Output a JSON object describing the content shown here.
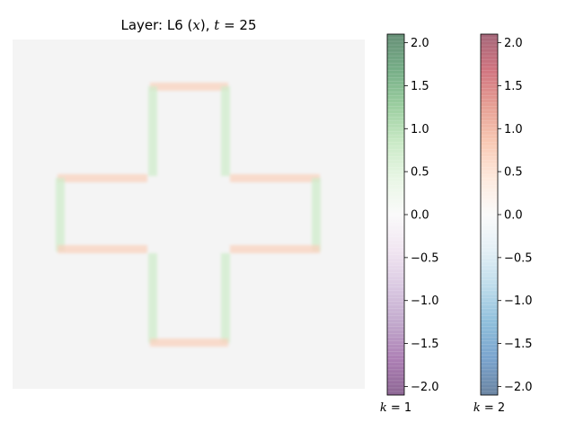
{
  "chart_data": {
    "type": "heatmap",
    "title": "Layer: L6 (x), t = 25",
    "title_parts": {
      "prefix": "Layer: L6 (",
      "var": "x",
      "mid": "), ",
      "tvar": "t",
      "tval": " = 25"
    },
    "grid": false,
    "shape": "plus/cross outline",
    "colorbars": [
      {
        "label": "k = 1",
        "label_var": "k",
        "label_val": " = 1",
        "colormap": "PRGn",
        "range": [
          -2.1,
          2.1
        ],
        "ticks": [
          "2.0",
          "1.5",
          "1.0",
          "0.5",
          "0.0",
          "−0.5",
          "−1.0",
          "−1.5",
          "−2.0"
        ],
        "tick_values": [
          2.0,
          1.5,
          1.0,
          0.5,
          0.0,
          -0.5,
          -1.0,
          -1.5,
          -2.0
        ]
      },
      {
        "label": "k = 2",
        "label_var": "k",
        "label_val": " = 2",
        "colormap": "RdBu_r",
        "range": [
          -2.1,
          2.1
        ],
        "ticks": [
          "2.0",
          "1.5",
          "1.0",
          "0.5",
          "0.0",
          "−0.5",
          "−1.0",
          "−1.5",
          "−2.0"
        ],
        "tick_values": [
          2.0,
          1.5,
          1.0,
          0.5,
          0.0,
          -0.5,
          -1.0,
          -1.5,
          -2.0
        ]
      }
    ],
    "field_edges": {
      "k1_vertical_edges_value": 0.35,
      "k2_horizontal_edges_value": 0.35
    },
    "colors": {
      "background_field": "#f4f4f4",
      "k1_edge": "#cfeccb",
      "k2_edge": "#f9d2bd"
    }
  }
}
